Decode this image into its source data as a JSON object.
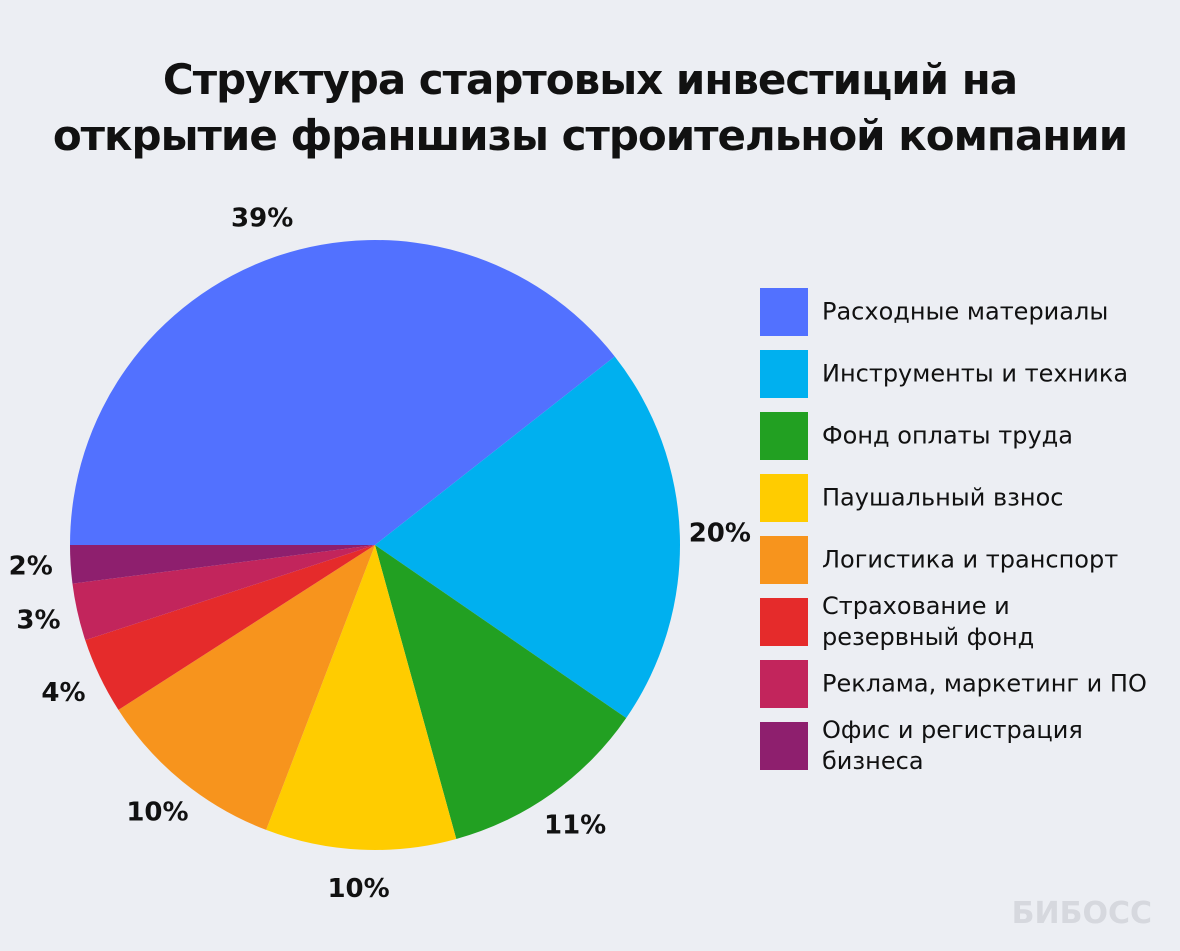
{
  "chart_data": {
    "type": "pie",
    "title": "Структура стартовых инвестиций на\nоткрытие франшизы строительной компании",
    "categories": [
      "Расходные материалы",
      "Инструменты и техника",
      "Фонд оплаты труда",
      "Паушальный взнос",
      "Логистика и транспорт",
      "Страхование и\nрезервный фонд",
      "Реклама, маркетинг и ПО",
      "Офис и регистрация\nбизнеса"
    ],
    "values": [
      39,
      20,
      11,
      10,
      10,
      4,
      3,
      2
    ],
    "value_labels": [
      "39%",
      "20%",
      "11%",
      "10%",
      "10%",
      "4%",
      "3%",
      "2%"
    ],
    "colors": [
      "#5271ff",
      "#00b0ef",
      "#22a022",
      "#ffcc00",
      "#f7941d",
      "#e52b2b",
      "#c2255c",
      "#8e1f6e"
    ],
    "legend": "right",
    "watermark": "БИБОСС"
  }
}
